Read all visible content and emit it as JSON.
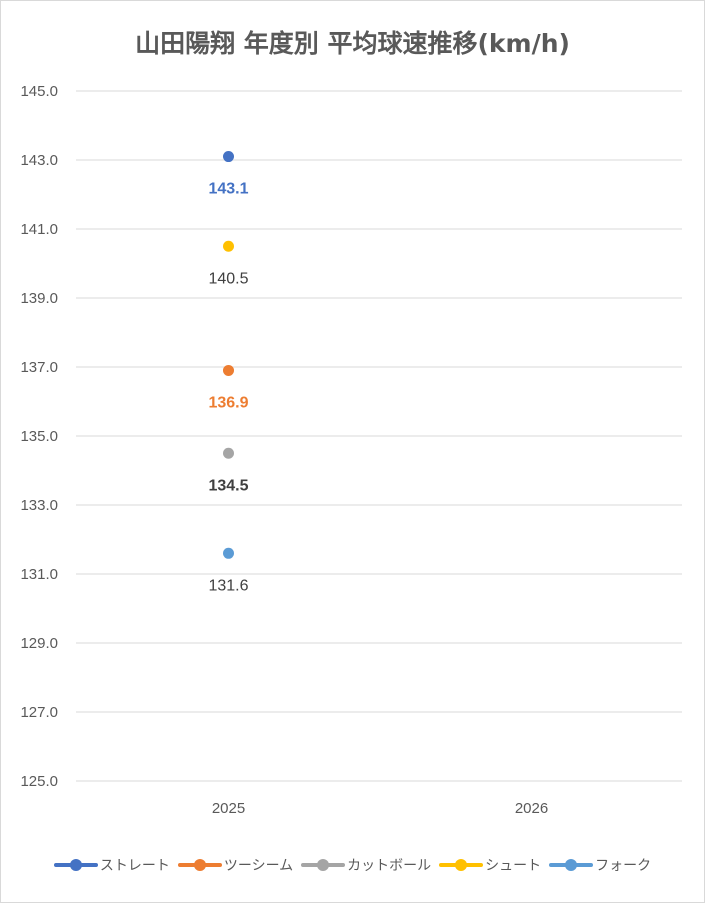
{
  "chart_data": {
    "type": "line",
    "title": "山田陽翔 年度別 平均球速推移(km/h)",
    "categories": [
      "2025",
      "2026"
    ],
    "ylim": [
      125.0,
      145.0
    ],
    "yticks": [
      "145.0",
      "143.0",
      "141.0",
      "139.0",
      "137.0",
      "135.0",
      "133.0",
      "131.0",
      "129.0",
      "127.0",
      "125.0"
    ],
    "grid": true,
    "legend_position": "bottom",
    "series": [
      {
        "name": "ストレート",
        "color": "#4472c4",
        "values": [
          143.1,
          null
        ],
        "labels": [
          "143.1",
          ""
        ],
        "label_color": "#4472c4",
        "label_bold": true
      },
      {
        "name": "ツーシーム",
        "color": "#ed7d31",
        "values": [
          136.9,
          null
        ],
        "labels": [
          "136.9",
          ""
        ],
        "label_color": "#ed7d31",
        "label_bold": true
      },
      {
        "name": "カットボール",
        "color": "#a5a5a5",
        "values": [
          134.5,
          null
        ],
        "labels": [
          "134.5",
          ""
        ],
        "label_color": "#404040",
        "label_bold": true
      },
      {
        "name": "シュート",
        "color": "#ffc000",
        "values": [
          140.5,
          null
        ],
        "labels": [
          "140.5",
          ""
        ],
        "label_color": "#404040",
        "label_bold": false
      },
      {
        "name": "フォーク",
        "color": "#5b9bd5",
        "values": [
          131.6,
          null
        ],
        "labels": [
          "131.6",
          ""
        ],
        "label_color": "#404040",
        "label_bold": false
      }
    ]
  }
}
